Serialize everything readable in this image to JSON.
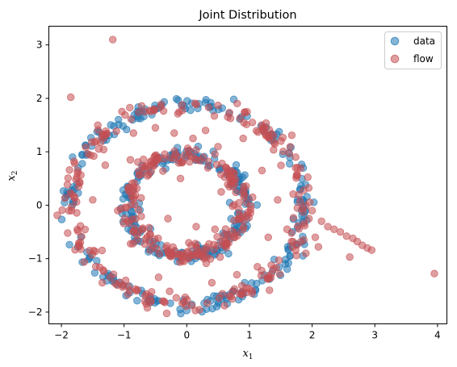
{
  "chart_data": {
    "type": "scatter",
    "title": "Joint Distribution",
    "xlabel": {
      "base": "x",
      "sub": "1"
    },
    "ylabel": {
      "base": "x",
      "sub": "2"
    },
    "xlim": [
      -2.2,
      4.15
    ],
    "ylim": [
      -2.22,
      3.35
    ],
    "xticks": [
      -2,
      -1,
      0,
      1,
      2,
      3,
      4
    ],
    "yticks": [
      -2,
      -1,
      0,
      1,
      2,
      3
    ],
    "grid": false,
    "legend_position": "top-right",
    "series": [
      {
        "name": "data",
        "color": "#1f77b4",
        "opacity": 0.55,
        "shape": "two-rings",
        "rings": [
          {
            "radius": 1.88,
            "center": [
              0,
              0
            ],
            "count": 220
          },
          {
            "radius": 0.93,
            "center": [
              0,
              0
            ],
            "count": 200
          }
        ],
        "noise": 0.07,
        "points": [
          [
            0,
            -1.97
          ],
          [
            -1.95,
            0.05
          ],
          [
            0.75,
            1.98
          ]
        ]
      },
      {
        "name": "flow",
        "color": "#c44e52",
        "opacity": 0.55,
        "shape": "two-rings",
        "rings": [
          {
            "radius": 1.85,
            "center": [
              0,
              0
            ],
            "count": 230
          },
          {
            "radius": 0.92,
            "center": [
              0,
              0
            ],
            "count": 220
          }
        ],
        "noise": 0.09,
        "points": [
          [
            -1.18,
            3.1
          ],
          [
            -1.85,
            2.02
          ],
          [
            3.95,
            -1.28
          ],
          [
            2.15,
            -0.3
          ],
          [
            2.25,
            -0.4
          ],
          [
            2.35,
            -0.45
          ],
          [
            2.45,
            -0.5
          ],
          [
            2.55,
            -0.58
          ],
          [
            2.65,
            -0.62
          ],
          [
            2.72,
            -0.68
          ],
          [
            2.8,
            -0.75
          ],
          [
            2.88,
            -0.8
          ],
          [
            2.95,
            -0.84
          ],
          [
            2.6,
            -0.97
          ],
          [
            2.05,
            -0.6
          ],
          [
            1.95,
            -0.25
          ],
          [
            2.0,
            -0.1
          ],
          [
            1.9,
            -0.9
          ],
          [
            2.1,
            -0.78
          ],
          [
            -0.9,
            0.85
          ],
          [
            -0.5,
            1.45
          ],
          [
            0.3,
            1.4
          ],
          [
            0.55,
            0.25
          ],
          [
            -0.3,
            -0.25
          ],
          [
            0.45,
            -0.45
          ],
          [
            -0.7,
            -0.45
          ],
          [
            0.9,
            1.25
          ],
          [
            -1.5,
            0.1
          ],
          [
            1.3,
            -0.6
          ],
          [
            -0.2,
            1.35
          ],
          [
            1.2,
            0.65
          ],
          [
            0.1,
            1.25
          ],
          [
            -1.1,
            -0.1
          ],
          [
            1.45,
            0.1
          ],
          [
            0.8,
            -1.3
          ],
          [
            -0.85,
            1.35
          ],
          [
            0.4,
            -1.45
          ],
          [
            1.05,
            0.15
          ],
          [
            -1.3,
            0.75
          ],
          [
            0.15,
            -0.4
          ],
          [
            -0.1,
            0.5
          ],
          [
            0.65,
            0.6
          ],
          [
            1.6,
            -0.45
          ],
          [
            -1.55,
            -0.85
          ],
          [
            1.75,
            0.55
          ],
          [
            -0.45,
            -1.35
          ],
          [
            0.95,
            -1.55
          ]
        ]
      }
    ]
  }
}
